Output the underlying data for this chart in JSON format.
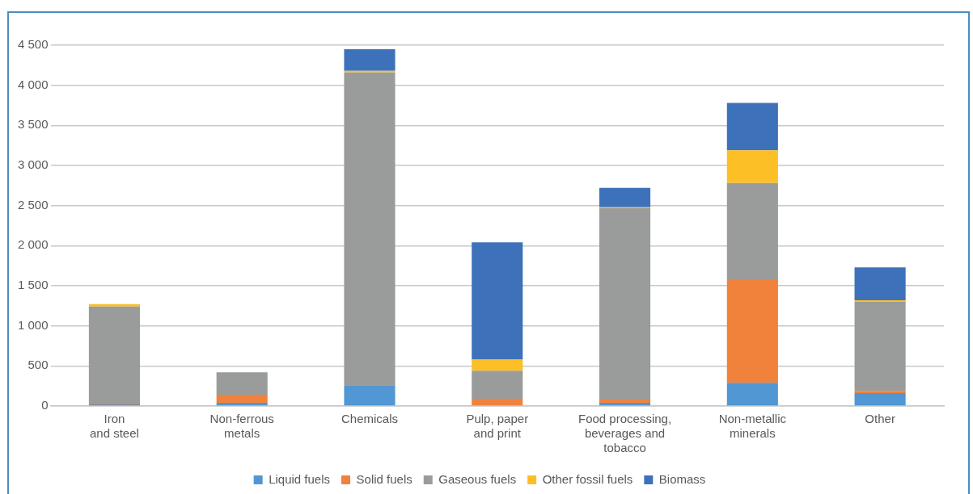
{
  "chart_data": {
    "type": "bar",
    "stacked": true,
    "categories": [
      "Iron\nand steel",
      "Non-ferrous\nmetals",
      "Chemicals",
      "Pulp, paper\nand print",
      "Food processing,\nbeverages and\ntobacco",
      "Non-metallic\nminerals",
      "Other"
    ],
    "series": [
      {
        "name": "Liquid fuels",
        "color": "#5097d3",
        "values": [
          20,
          40,
          260,
          null,
          40,
          290,
          160
        ]
      },
      {
        "name": "Solid fuels",
        "color": "#f0823c",
        "values": [
          20,
          100,
          0,
          90,
          40,
          1280,
          30
        ]
      },
      {
        "name": "Gaseous fuels",
        "color": "#9a9c9c",
        "values": [
          1200,
          280,
          3900,
          350,
          2390,
          1210,
          1110
        ]
      },
      {
        "name": "Other fossil fuels",
        "color": "#fdbf26",
        "values": [
          30,
          0,
          20,
          140,
          10,
          410,
          20
        ]
      },
      {
        "name": "Biomass",
        "color": "#3d72ba",
        "values": [
          0,
          0,
          270,
          1460,
          240,
          590,
          410
        ]
      }
    ],
    "ylim": [
      0,
      4500
    ],
    "yticks": [
      {
        "value": 0,
        "label": "0"
      },
      {
        "value": 500,
        "label": "500"
      },
      {
        "value": 1000,
        "label": "1 000"
      },
      {
        "value": 1500,
        "label": "1 500"
      },
      {
        "value": 2000,
        "label": "2 000"
      },
      {
        "value": 2500,
        "label": "2 500"
      },
      {
        "value": 3000,
        "label": "3 000"
      },
      {
        "value": 3500,
        "label": "3 500"
      },
      {
        "value": 4000,
        "label": "4 000"
      },
      {
        "value": 4500,
        "label": "4 500"
      }
    ],
    "grid": "y",
    "legend": "bottom"
  }
}
